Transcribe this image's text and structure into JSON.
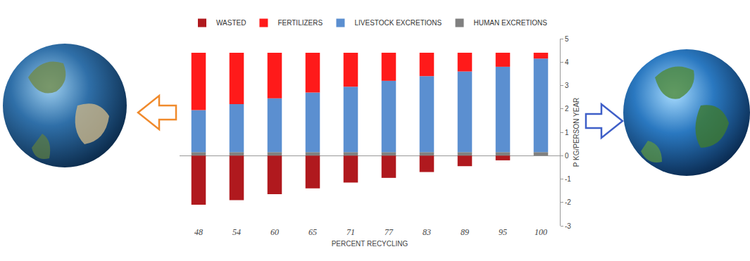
{
  "chart_data": {
    "type": "bar",
    "stacked": true,
    "grid": false,
    "legend": "top",
    "x_label": "PERCENT RECYCLING",
    "y_label": "P KG/PERSON YEAR",
    "categories": [
      "48",
      "54",
      "60",
      "65",
      "71",
      "77",
      "83",
      "89",
      "95",
      "100"
    ],
    "ylim": [
      -3,
      5
    ],
    "yticks": [
      -3,
      -2,
      -1,
      0,
      1,
      2,
      3,
      4,
      5
    ],
    "series": [
      {
        "name": "WASTED",
        "color": "#b0191e",
        "values": [
          -2.1,
          -1.9,
          -1.65,
          -1.4,
          -1.15,
          -0.95,
          -0.7,
          -0.45,
          -0.2,
          0
        ]
      },
      {
        "name": "FERTILIZERS",
        "color": "#ff1a1a",
        "values": [
          2.45,
          2.2,
          1.95,
          1.7,
          1.45,
          1.2,
          1.0,
          0.8,
          0.6,
          0.25
        ]
      },
      {
        "name": "LIVESTOCK EXCRETIONS",
        "color": "#5b8fd0",
        "values": [
          1.8,
          2.05,
          2.3,
          2.55,
          2.8,
          3.05,
          3.25,
          3.45,
          3.65,
          4.0
        ]
      },
      {
        "name": "HUMAN EXCRETIONS",
        "color": "#808080",
        "values": [
          0.15,
          0.15,
          0.15,
          0.15,
          0.15,
          0.15,
          0.15,
          0.15,
          0.15,
          0.15
        ]
      }
    ]
  }
}
